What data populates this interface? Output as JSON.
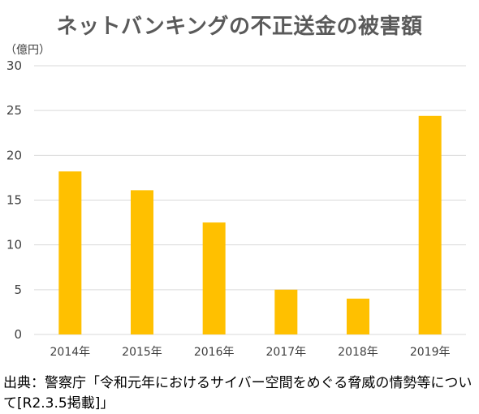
{
  "chart_data": {
    "type": "bar",
    "title": "ネットバンキングの不正送金の被害額",
    "unit_label": "（億円）",
    "categories": [
      "2014年",
      "2015年",
      "2016年",
      "2017年",
      "2018年",
      "2019年"
    ],
    "values": [
      18.2,
      16.1,
      12.5,
      5.0,
      4.0,
      24.4
    ],
    "ylim": [
      0,
      30
    ],
    "yticks": [
      "0",
      "5",
      "10",
      "15",
      "20",
      "25",
      "30"
    ],
    "grid": true,
    "legend": "none",
    "bar_color": "#ffc000",
    "grid_color": "#d9d9d9"
  },
  "source": {
    "text": "出典：警察庁「令和元年におけるサイバー空間をめぐる脅威の情勢等について[R2.3.5掲載]」"
  }
}
